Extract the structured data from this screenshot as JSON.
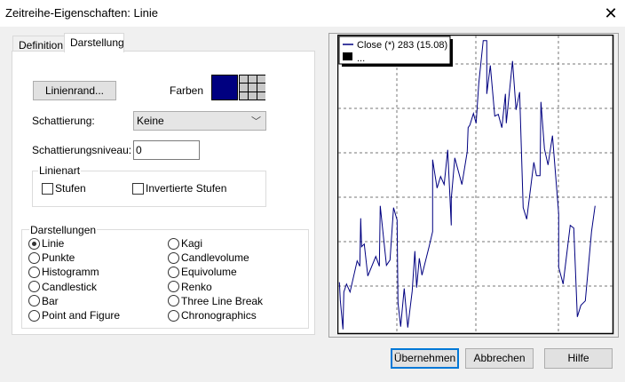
{
  "window": {
    "title": "Zeitreihe-Eigenschaften: Linie",
    "close_icon": "close-icon"
  },
  "tabs": [
    {
      "label": "Definition",
      "active": false
    },
    {
      "label": "Darstellung",
      "active": true
    }
  ],
  "linienrand_label": "Linienrand...",
  "farben": {
    "label": "Farben",
    "selected_color": "#000080"
  },
  "schattierung": {
    "label": "Schattierung:",
    "value": "Keine"
  },
  "schattierungsniveau": {
    "label": "Schattierungsniveau:",
    "value": "0"
  },
  "linienart": {
    "label": "Linienart",
    "options": [
      {
        "label": "Stufen",
        "checked": false
      },
      {
        "label": "Invertierte Stufen",
        "checked": false
      }
    ]
  },
  "darstellungen": {
    "label": "Darstellungen",
    "options": [
      {
        "label": "Linie",
        "selected": true
      },
      {
        "label": "Punkte",
        "selected": false
      },
      {
        "label": "Histogramm",
        "selected": false
      },
      {
        "label": "Candlestick",
        "selected": false
      },
      {
        "label": "Bar",
        "selected": false
      },
      {
        "label": "Point and Figure",
        "selected": false
      },
      {
        "label": "Kagi",
        "selected": false
      },
      {
        "label": "Candlevolume",
        "selected": false
      },
      {
        "label": "Equivolume",
        "selected": false
      },
      {
        "label": "Renko",
        "selected": false
      },
      {
        "label": "Three Line Break",
        "selected": false
      },
      {
        "label": "Chronographics",
        "selected": false
      }
    ]
  },
  "preview": {
    "legend": [
      {
        "label": "Close (*) 283 (15.08)",
        "color": "#000080"
      },
      {
        "label": "...",
        "color": "#000000"
      }
    ],
    "line_color": "#000080",
    "points": [
      [
        1,
        53
      ],
      [
        2,
        33
      ],
      [
        5,
        0
      ],
      [
        6,
        42
      ],
      [
        9,
        51
      ],
      [
        13,
        42
      ],
      [
        21,
        77
      ],
      [
        24,
        71
      ],
      [
        25,
        125
      ],
      [
        26,
        93
      ],
      [
        29,
        96
      ],
      [
        33,
        60
      ],
      [
        42,
        82
      ],
      [
        46,
        71
      ],
      [
        47,
        139
      ],
      [
        50,
        110
      ],
      [
        54,
        72
      ],
      [
        58,
        78
      ],
      [
        62,
        137
      ],
      [
        66,
        123
      ],
      [
        67,
        30
      ],
      [
        70,
        3
      ],
      [
        74,
        46
      ],
      [
        78,
        2
      ],
      [
        83,
        43
      ],
      [
        86,
        88
      ],
      [
        88,
        47
      ],
      [
        91,
        80
      ],
      [
        94,
        61
      ],
      [
        102,
        93
      ],
      [
        106,
        110
      ],
      [
        106,
        191
      ],
      [
        111,
        159
      ],
      [
        115,
        172
      ],
      [
        119,
        163
      ],
      [
        123,
        202
      ],
      [
        127,
        117
      ],
      [
        127,
        147
      ],
      [
        131,
        193
      ],
      [
        139,
        163
      ],
      [
        145,
        200
      ],
      [
        146,
        227
      ],
      [
        148,
        230
      ],
      [
        152,
        243
      ],
      [
        155,
        232
      ],
      [
        158,
        277
      ],
      [
        163,
        325
      ],
      [
        167,
        325
      ],
      [
        167,
        265
      ],
      [
        171,
        297
      ],
      [
        176,
        240
      ],
      [
        180,
        242
      ],
      [
        184,
        227
      ],
      [
        188,
        265
      ],
      [
        189,
        232
      ],
      [
        196,
        302
      ],
      [
        200,
        247
      ],
      [
        204,
        267
      ],
      [
        208,
        137
      ],
      [
        212,
        124
      ],
      [
        220,
        188
      ],
      [
        223,
        173
      ],
      [
        227,
        173
      ],
      [
        228,
        256
      ],
      [
        232,
        203
      ],
      [
        236,
        185
      ],
      [
        241,
        218
      ],
      [
        248,
        130
      ],
      [
        248,
        70
      ],
      [
        253,
        51
      ],
      [
        261,
        117
      ],
      [
        265,
        114
      ],
      [
        269,
        14
      ],
      [
        273,
        27
      ],
      [
        278,
        32
      ],
      [
        285,
        110
      ],
      [
        289,
        139
      ]
    ]
  },
  "buttons": {
    "apply": "Übernehmen",
    "cancel": "Abbrechen",
    "help": "Hilfe"
  }
}
